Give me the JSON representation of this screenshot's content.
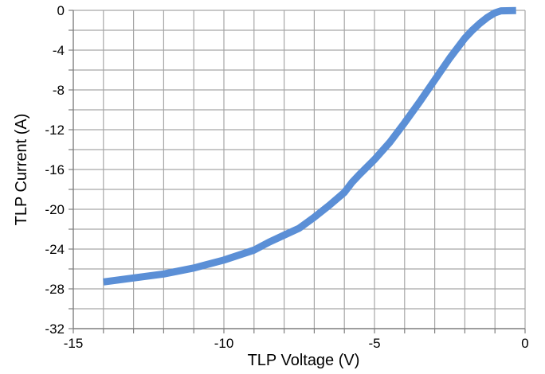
{
  "chart_data": {
    "type": "line",
    "xlabel": "TLP Voltage (V)",
    "ylabel": "TLP Current (A)",
    "xlim": [
      -15,
      0
    ],
    "ylim": [
      -32,
      0
    ],
    "x_ticks": [
      -15,
      -10,
      -5,
      0
    ],
    "y_ticks": [
      0,
      -4,
      -8,
      -12,
      -16,
      -20,
      -24,
      -28,
      -32
    ],
    "grid": true,
    "legend": "none",
    "colors": {
      "series": "#5b8fd6",
      "grid": "#a6a6a6",
      "axis": "#7f7f7f"
    },
    "series": [
      {
        "x": [
          -14.0,
          -13.0,
          -12.0,
          -11.0,
          -10.0,
          -9.0,
          -8.5,
          -8.0,
          -7.5,
          -7.0,
          -6.5,
          -6.0,
          -5.75,
          -5.5,
          -5.0,
          -4.5,
          -4.0,
          -3.5,
          -3.0,
          -2.5,
          -2.0,
          -1.75,
          -1.5,
          -1.25,
          -1.0,
          -0.8,
          -0.3
        ],
        "y": [
          -27.3,
          -26.9,
          -26.5,
          -25.9,
          -25.1,
          -24.1,
          -23.3,
          -22.6,
          -21.9,
          -20.8,
          -19.6,
          -18.3,
          -17.3,
          -16.5,
          -15.0,
          -13.3,
          -11.3,
          -9.2,
          -7.0,
          -4.8,
          -2.8,
          -2.0,
          -1.3,
          -0.7,
          -0.25,
          -0.05,
          -0.02
        ]
      }
    ]
  }
}
